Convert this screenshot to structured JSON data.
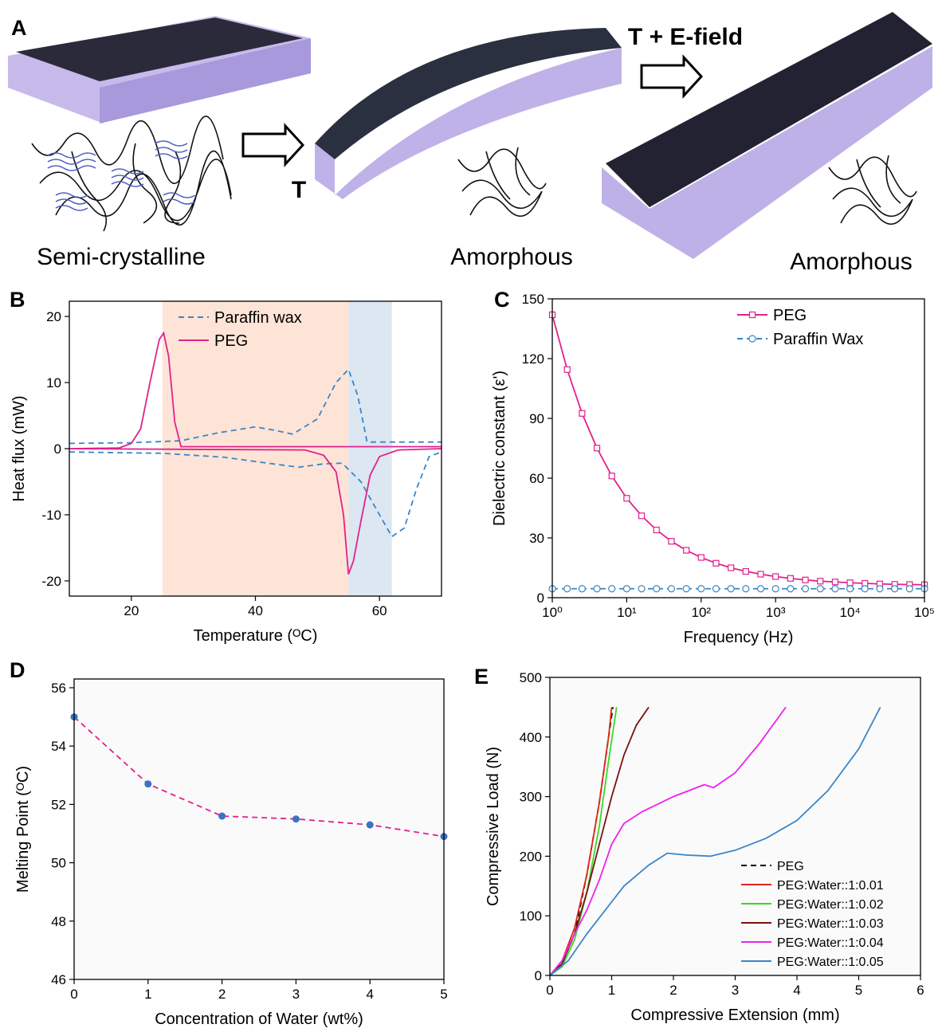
{
  "panel_a": {
    "label": "A",
    "arrow_labels": [
      "T",
      "T + E-field"
    ],
    "captions": [
      "Semi-crystalline",
      "Amorphous",
      "Amorphous"
    ]
  },
  "chart_data": [
    {
      "type": "line",
      "label": "B",
      "x_label": "Temperature (ᴼC)",
      "y_label": "Heat flux (mW)",
      "xlim": [
        10,
        70
      ],
      "ylim": [
        -22.3,
        22.3
      ],
      "xticks": [
        20,
        40,
        60
      ],
      "yticks": [
        -20,
        -10,
        0,
        10,
        20
      ],
      "legend": "upper right",
      "bands": [
        {
          "from": 25,
          "to": 55,
          "color": "#fde4d6"
        },
        {
          "from": 55,
          "to": 62,
          "color": "#dde7f2"
        }
      ],
      "series": [
        {
          "name": "Paraffin wax",
          "color": "#3a86c8",
          "dash": true,
          "x": [
            10,
            20,
            28,
            34,
            40,
            43,
            46,
            50,
            53,
            55,
            56.5,
            58,
            62,
            70,
            null,
            10,
            25,
            35,
            42,
            47,
            51,
            54,
            57,
            60,
            62,
            64,
            66,
            68,
            70
          ],
          "values": [
            0.8,
            0.9,
            1.2,
            2.4,
            3.3,
            2.8,
            2.2,
            4.5,
            10,
            12,
            8,
            1,
            1,
            1,
            null,
            -0.5,
            -0.7,
            -1.3,
            -2.2,
            -2.8,
            -2.3,
            -2.2,
            -5,
            -10,
            -13.3,
            -12,
            -6,
            -1.2,
            -0.5
          ]
        },
        {
          "name": "PEG",
          "color": "#e0228c",
          "dash": false,
          "x": [
            10,
            18,
            20,
            21.5,
            23,
            24.5,
            25.2,
            26,
            27,
            28,
            30,
            70,
            null,
            10,
            48,
            51,
            53,
            54.2,
            55,
            55.8,
            57,
            58.5,
            60,
            63,
            70
          ],
          "values": [
            0,
            0.1,
            0.8,
            3,
            10,
            16.5,
            17.5,
            14,
            4,
            0.3,
            0.3,
            0.3,
            null,
            0,
            -0.2,
            -1,
            -3.5,
            -10,
            -19,
            -17,
            -11,
            -4,
            -1.2,
            -0.2,
            0
          ]
        }
      ]
    },
    {
      "type": "line",
      "label": "C",
      "x_label": "Frequency (Hz)",
      "y_label": "Dielectric constant (ε')",
      "xscale": "log",
      "xlim": [
        1,
        100000
      ],
      "ylim": [
        0,
        150
      ],
      "xticks": [
        {
          "value": 1,
          "label": "10⁰"
        },
        {
          "value": 10,
          "label": "10¹"
        },
        {
          "value": 100,
          "label": "10²"
        },
        {
          "value": 1000,
          "label": "10³"
        },
        {
          "value": 10000,
          "label": "10⁴"
        },
        {
          "value": 100000,
          "label": "10⁵"
        }
      ],
      "yticks": [
        0,
        30,
        60,
        90,
        120,
        150
      ],
      "legend": "upper right",
      "series": [
        {
          "name": "PEG",
          "color": "#e0228c",
          "dash": false,
          "marker": "square",
          "x": [
            1,
            1.585,
            2.512,
            3.981,
            6.31,
            10,
            15.85,
            25.12,
            39.81,
            63.1,
            100,
            158.5,
            251.2,
            398.1,
            631,
            1000,
            1585,
            2512,
            3981,
            6310,
            10000,
            15850,
            25120,
            39810,
            63100,
            100000
          ],
          "values": [
            142,
            114.5,
            92.5,
            75.1,
            61.1,
            49.9,
            41.1,
            34,
            28.3,
            23.8,
            20.2,
            17.3,
            15,
            13.2,
            11.8,
            10.6,
            9.7,
            8.9,
            8.3,
            7.9,
            7.5,
            7.2,
            6.9,
            6.7,
            6.6,
            6.5
          ]
        },
        {
          "name": "Paraffin Wax",
          "color": "#3a86c8",
          "dash": true,
          "marker": "circle",
          "x": [
            1,
            1.585,
            2.512,
            3.981,
            6.31,
            10,
            15.85,
            25.12,
            39.81,
            63.1,
            100,
            158.5,
            251.2,
            398.1,
            631,
            1000,
            1585,
            2512,
            3981,
            6310,
            10000,
            15850,
            25120,
            39810,
            63100,
            100000
          ],
          "values": [
            4.5,
            4.5,
            4.5,
            4.5,
            4.5,
            4.5,
            4.5,
            4.5,
            4.5,
            4.5,
            4.5,
            4.5,
            4.5,
            4.5,
            4.5,
            4.5,
            4.5,
            4.5,
            4.5,
            4.5,
            4.5,
            4.5,
            4.5,
            4.5,
            4.5,
            4.5
          ]
        }
      ]
    },
    {
      "type": "line",
      "label": "D",
      "x_label": "Concentration of Water (wt%)",
      "y_label": "Melting Point (ᴼC)",
      "xlim": [
        0,
        5
      ],
      "ylim": [
        46,
        56.3
      ],
      "xticks": [
        0,
        1,
        2,
        3,
        4,
        5
      ],
      "yticks": [
        46,
        48,
        50,
        52,
        54,
        56
      ],
      "series": [
        {
          "color": "#e0228c",
          "marker_color": "#3a72c4",
          "dash": true,
          "marker": "dot",
          "x": [
            0,
            1,
            2,
            3,
            4,
            5
          ],
          "values": [
            55,
            52.7,
            51.6,
            51.5,
            51.3,
            50.9
          ]
        }
      ]
    },
    {
      "type": "line",
      "label": "E",
      "x_label": "Compressive Extension (mm)",
      "y_label": "Compressive Load (N)",
      "xlim": [
        0,
        6
      ],
      "ylim": [
        0,
        500
      ],
      "xticks": [
        0,
        1,
        2,
        3,
        4,
        5,
        6
      ],
      "yticks": [
        0,
        100,
        200,
        300,
        400,
        500
      ],
      "legend": "lower right",
      "series": [
        {
          "name": "PEG",
          "color": "#000000",
          "dash": true,
          "x": [
            0,
            0.2,
            0.4,
            0.6,
            0.8,
            0.95,
            1.02
          ],
          "values": [
            0,
            20,
            70,
            170,
            290,
            400,
            450
          ]
        },
        {
          "name": "PEG:Water::1:0.01",
          "color": "#e3241b",
          "dash": false,
          "x": [
            0,
            0.2,
            0.4,
            0.6,
            0.8,
            0.95,
            1.0
          ],
          "values": [
            0,
            25,
            80,
            170,
            290,
            400,
            450
          ]
        },
        {
          "name": "PEG:Water::1:0.02",
          "color": "#33dd22",
          "dash": false,
          "x": [
            0,
            0.2,
            0.4,
            0.6,
            0.8,
            0.95,
            1.08
          ],
          "values": [
            0,
            15,
            60,
            140,
            250,
            360,
            450
          ]
        },
        {
          "name": "PEG:Water::1:0.03",
          "color": "#7a1010",
          "dash": false,
          "x": [
            0,
            0.2,
            0.4,
            0.6,
            0.8,
            1.0,
            1.2,
            1.4,
            1.6
          ],
          "values": [
            0,
            20,
            70,
            140,
            220,
            300,
            370,
            420,
            450
          ]
        },
        {
          "name": "PEG:Water::1:0.04",
          "color": "#ee22ee",
          "dash": false,
          "x": [
            0,
            0.2,
            0.4,
            0.6,
            0.8,
            1.0,
            1.2,
            1.5,
            2.0,
            2.5,
            2.65,
            3.0,
            3.4,
            3.82
          ],
          "values": [
            0,
            25,
            70,
            110,
            160,
            220,
            255,
            275,
            300,
            320,
            315,
            340,
            390,
            450
          ]
        },
        {
          "name": "PEG:Water::1:0.05",
          "color": "#3a86c8",
          "dash": false,
          "x": [
            0,
            0.3,
            0.6,
            0.9,
            1.2,
            1.6,
            1.9,
            2.2,
            2.6,
            3.0,
            3.5,
            4.0,
            4.5,
            5.0,
            5.35
          ],
          "values": [
            0,
            25,
            70,
            110,
            150,
            185,
            205,
            202,
            200,
            210,
            230,
            260,
            310,
            380,
            450
          ]
        }
      ]
    }
  ]
}
